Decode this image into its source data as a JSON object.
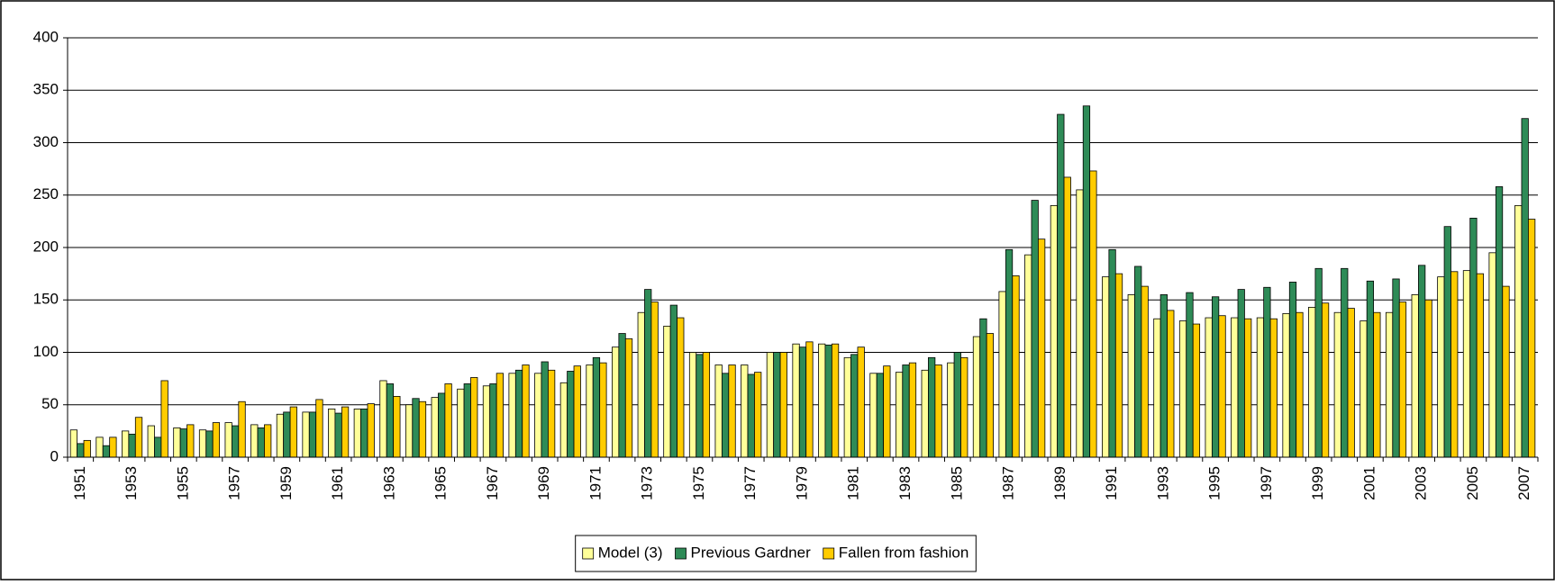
{
  "chart_data": {
    "type": "bar",
    "categories": [
      "1951",
      null,
      "1953",
      null,
      "1955",
      null,
      "1957",
      null,
      "1959",
      null,
      "1961",
      null,
      "1963",
      null,
      "1965",
      null,
      "1967",
      null,
      "1969",
      null,
      "1971",
      null,
      "1973",
      null,
      "1975",
      null,
      "1977",
      null,
      "1979",
      null,
      "1981",
      null,
      "1983",
      null,
      "1985",
      null,
      "1987",
      null,
      "1989",
      null,
      "1991",
      null,
      "1993",
      null,
      "1995",
      null,
      "1997",
      null,
      "1999",
      null,
      "2001",
      null,
      "2003",
      null,
      "2005",
      null,
      "2007"
    ],
    "series": [
      {
        "name": "Model (3)",
        "color": "#ffff99",
        "values": [
          26,
          19,
          25,
          30,
          28,
          26,
          33,
          31,
          41,
          43,
          46,
          46,
          73,
          50,
          57,
          65,
          68,
          80,
          80,
          71,
          88,
          105,
          138,
          125,
          100,
          88,
          88,
          100,
          108,
          108,
          95,
          80,
          81,
          83,
          90,
          115,
          158,
          193,
          240,
          255,
          172,
          155,
          132,
          130,
          133,
          133,
          133,
          137,
          143,
          138,
          130,
          138,
          155,
          172,
          178,
          195,
          240
        ]
      },
      {
        "name": "Previous Gardner",
        "color": "#2e8b57",
        "values": [
          13,
          11,
          22,
          19,
          27,
          25,
          30,
          28,
          43,
          43,
          42,
          46,
          70,
          56,
          61,
          70,
          70,
          83,
          91,
          82,
          95,
          118,
          160,
          145,
          98,
          80,
          79,
          100,
          105,
          107,
          98,
          80,
          88,
          95,
          100,
          132,
          198,
          245,
          327,
          335,
          198,
          182,
          155,
          157,
          153,
          160,
          162,
          167,
          180,
          180,
          168,
          170,
          183,
          220,
          228,
          258,
          323
        ]
      },
      {
        "name": "Fallen from fashion",
        "color": "#ffcc00",
        "values": [
          16,
          19,
          38,
          73,
          31,
          33,
          53,
          31,
          48,
          55,
          48,
          51,
          58,
          53,
          70,
          76,
          80,
          88,
          83,
          87,
          90,
          113,
          148,
          133,
          100,
          88,
          81,
          100,
          110,
          108,
          105,
          87,
          90,
          88,
          95,
          118,
          173,
          208,
          267,
          273,
          175,
          163,
          140,
          127,
          135,
          132,
          132,
          138,
          147,
          142,
          138,
          148,
          150,
          177,
          175,
          163,
          227
        ]
      }
    ],
    "ylim": [
      0,
      400
    ],
    "yticks": [
      0,
      50,
      100,
      150,
      200,
      250,
      300,
      350,
      400
    ],
    "grid": true,
    "legend": "bottom"
  }
}
